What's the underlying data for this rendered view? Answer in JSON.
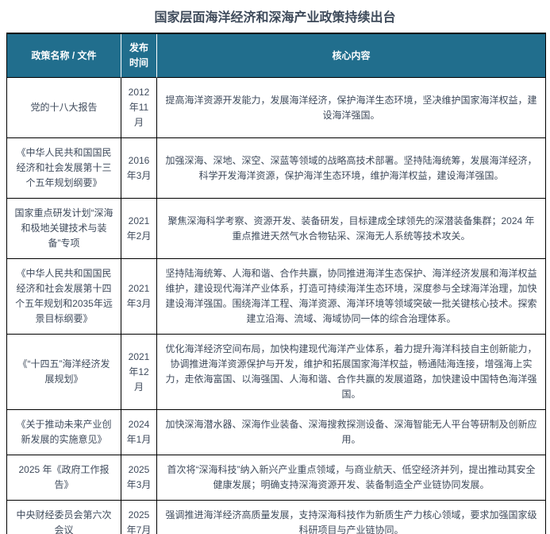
{
  "page": {
    "title": "国家层面海洋经济和深海产业政策持续出台"
  },
  "colors": {
    "title_text": "#3e4a5a",
    "body_text": "#3f4b5c",
    "header_background": "#216e8d",
    "header_text": "#ffffff",
    "grid_border": "#000000",
    "header_divider": "#ffffff",
    "page_background": "#ffffff"
  },
  "table": {
    "headers": {
      "policy": "政策名称 / 文件",
      "date": "发布时间",
      "content": "核心内容"
    },
    "rows": [
      {
        "policy": "党的十八大报告",
        "date": "2012年11月",
        "content": "提高海洋资源开发能力，发展海洋经济，保护海洋生态环境，坚决维护国家海洋权益，建设海洋强国。"
      },
      {
        "policy": "《中华人民共和国国民经济和社会发展第十三个五年规划纲要》",
        "date": "2016年3月",
        "content": "加强深海、深地、深空、深蓝等领域的战略高技术部署。坚持陆海统筹，发展海洋经济，科学开发海洋资源，保护海洋生态环境，维护海洋权益，建设海洋强国。"
      },
      {
        "policy": "国家重点研发计划“深海和极地关键技术与装备”专项",
        "date": "2021年2月",
        "content": "聚焦深海科学考察、资源开发、装备研发，目标建成全球领先的深潜装备集群；2024 年重点推进天然气水合物钻采、深海无人系统等技术攻关。"
      },
      {
        "policy": "《中华人民共和国国民经济和社会发展第十四个五年规划和2035年远景目标纲要》",
        "date": "2021年3月",
        "content": "坚持陆海统筹、人海和谐、合作共赢，协同推进海洋生态保护、海洋经济发展和海洋权益维护，建设现代海洋产业体系，打造可持续海洋生态环境，深度参与全球海洋治理，加快建设海洋强国。围绕海洋工程、海洋资源、海洋环境等领域突破一批关键核心技术。探索建立沿海、流域、海域协同一体的综合治理体系。"
      },
      {
        "policy": "《“十四五”海洋经济发展规划》",
        "date": "2021年12月",
        "content": "优化海洋经济空间布局，加快构建现代海洋产业体系，着力提升海洋科技自主创新能力，协调推进海洋资源保护与开发，维护和拓展国家海洋权益，畅通陆海连接，增强海上实力，走依海富国、以海强国、人海和谐、合作共赢的发展道路，加快建设中国特色海洋强国。"
      },
      {
        "policy": "《关于推动未来产业创新发展的实施意见》",
        "date": "2024年1月",
        "content": "加快深海潜水器、深海作业装备、深海搜救探测设备、深海智能无人平台等研制及创新应用。"
      },
      {
        "policy": "2025 年《政府工作报告》",
        "date": "2025年3月",
        "content": "首次将“深海科技”纳入新兴产业重点领域，与商业航天、低空经济并列，提出推动其安全健康发展；明确支持深海资源开发、装备制造全产业链协同发展。"
      },
      {
        "policy": "中央财经委员会第六次会议",
        "date": "2025年7月",
        "content": "强调推进海洋经济高质量发展，支持深海科技作为新质生产力核心领域，要求加强国家级科研项目与产业链协同。"
      }
    ]
  }
}
